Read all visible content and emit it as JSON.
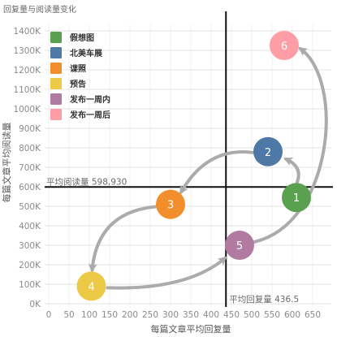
{
  "chart_data": {
    "type": "scatter",
    "title": "回复量与阅读量变化",
    "xlabel": "每篇文章平均回复量",
    "ylabel": "每篇文章平均阅读量",
    "xlim": [
      0,
      650
    ],
    "ylim": [
      0,
      1400000
    ],
    "xticks": [
      0,
      50,
      100,
      150,
      200,
      250,
      300,
      350,
      400,
      450,
      500,
      550,
      600,
      650
    ],
    "xtick_labels": [
      "0",
      "50",
      "100",
      "150",
      "200",
      "250",
      "300",
      "350",
      "400",
      "450",
      "500",
      "550",
      "600",
      "650"
    ],
    "yticks": [
      0,
      100000,
      200000,
      300000,
      400000,
      500000,
      600000,
      700000,
      800000,
      900000,
      1000000,
      1100000,
      1200000,
      1300000,
      1400000
    ],
    "ytick_labels": [
      "0K",
      "100K",
      "200K",
      "300K",
      "400K",
      "500K",
      "600K",
      "700K",
      "800K",
      "900K",
      "1000K",
      "1100K",
      "1200K",
      "1300K",
      "1400K"
    ],
    "grid": true,
    "legend": "top-left",
    "series": [
      {
        "name": "假想图",
        "color": "#59a14f",
        "label": "1",
        "x": 610,
        "y": 545000
      },
      {
        "name": "北美车展",
        "color": "#4e79a7",
        "label": "2",
        "x": 540,
        "y": 780000
      },
      {
        "name": "谍照",
        "color": "#f28e2b",
        "label": "3",
        "x": 300,
        "y": 510000
      },
      {
        "name": "预告",
        "color": "#edc948",
        "label": "4",
        "x": 105,
        "y": 90000
      },
      {
        "name": "发布一周内",
        "color": "#b07aa1",
        "label": "5",
        "x": 470,
        "y": 300000
      },
      {
        "name": "发布一周后",
        "color": "#ff9da7",
        "label": "6",
        "x": 580,
        "y": 1325000
      }
    ],
    "reference_lines": [
      {
        "axis": "y",
        "value": 598930,
        "label": "平均阅读量 598,930"
      },
      {
        "axis": "x",
        "value": 436.5,
        "label": "平均回复量 436.5"
      }
    ],
    "arrows": [
      {
        "from": "1",
        "to": "2"
      },
      {
        "from": "2",
        "to": "3"
      },
      {
        "from": "3",
        "to": "4"
      },
      {
        "from": "4",
        "to": "5"
      },
      {
        "from": "5",
        "to": "6"
      }
    ]
  }
}
